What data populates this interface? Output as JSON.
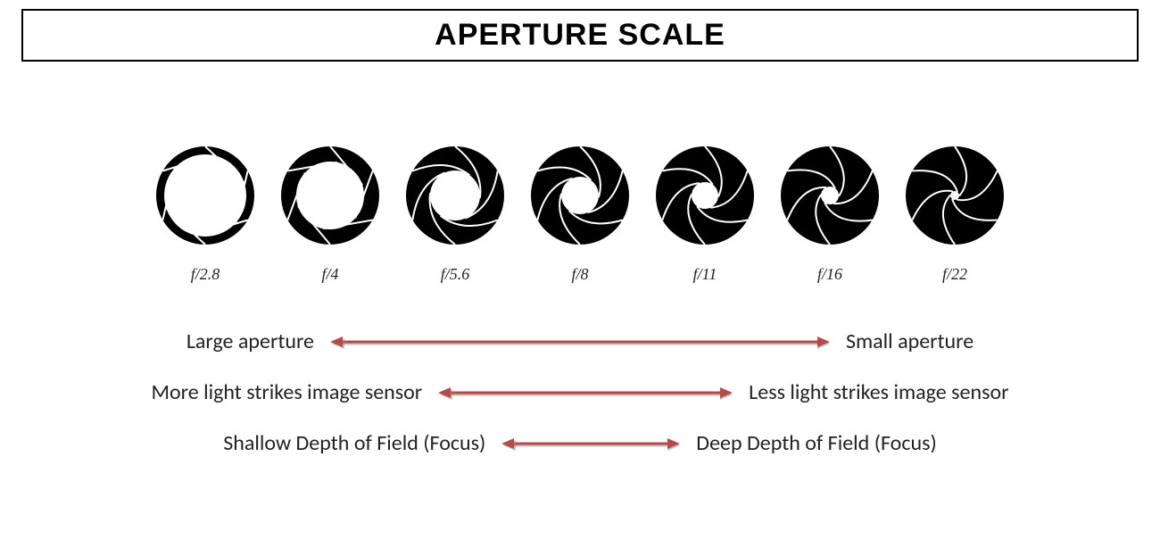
{
  "title": "APERTURE SCALE",
  "colors": {
    "background": "#ffffff",
    "border": "#000000",
    "iris_fill": "#000000",
    "iris_slit": "#ffffff",
    "text": "#222222",
    "arrow": "#b74a4a",
    "arrow_shadow": "#888888"
  },
  "diagram": {
    "type": "infographic",
    "outer_radius": 55,
    "apertures": [
      {
        "label": "f/2.8",
        "opening_radius": 46,
        "ring": true
      },
      {
        "label": "f/4",
        "opening_radius": 38,
        "ring": true
      },
      {
        "label": "f/5.6",
        "opening_radius": 28,
        "ring": false
      },
      {
        "label": "f/8",
        "opening_radius": 21,
        "ring": false
      },
      {
        "label": "f/11",
        "opening_radius": 15,
        "ring": false
      },
      {
        "label": "f/16",
        "opening_radius": 10,
        "ring": false
      },
      {
        "label": "f/22",
        "opening_radius": 5,
        "ring": false
      }
    ],
    "blade_count": 6,
    "slit_stroke": 2
  },
  "legend": {
    "arrow_stroke": 3,
    "rows": [
      {
        "left": "Large aperture",
        "right": "Small aperture",
        "arrow_length": 560
      },
      {
        "left": "More light strikes image sensor",
        "right": "Less light strikes image sensor",
        "arrow_length": 330
      },
      {
        "left": "Shallow Depth of Field (Focus)",
        "right": "Deep Depth of Field (Focus)",
        "arrow_length": 200
      }
    ],
    "label_fontsize": 24
  }
}
